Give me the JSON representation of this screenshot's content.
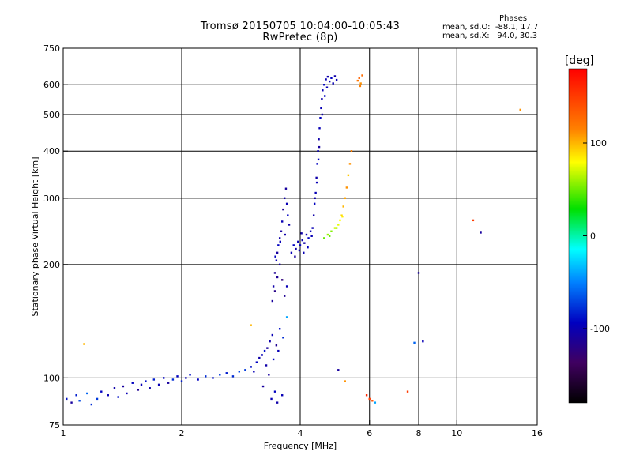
{
  "title_line1": "Tromsø 20150705 10:04:00-10:05:43",
  "title_line2": "RwPretec (8p)",
  "phases": {
    "heading": "Phases",
    "line_o": "mean, sd,O:  -88.1, 17.7",
    "line_x": "mean, sd,X:   94.0, 30.3"
  },
  "colorbar": {
    "label": "[deg]",
    "range": [
      -180,
      180
    ],
    "ticks": [
      {
        "value": 100,
        "label": "100"
      },
      {
        "value": 0,
        "label": "0"
      },
      {
        "value": -100,
        "label": "-100"
      }
    ]
  },
  "chart_data": {
    "type": "scatter",
    "xlabel": "Frequency [MHz]",
    "ylabel": "Stationary phase Virtual Height [km]",
    "xscale": "log",
    "yscale": "log",
    "xlim": [
      1,
      16
    ],
    "ylim": [
      75,
      750
    ],
    "xticks": [
      {
        "value": 1,
        "label": "1"
      },
      {
        "value": 2,
        "label": "2"
      },
      {
        "value": 4,
        "label": "4"
      },
      {
        "value": 6,
        "label": "6"
      },
      {
        "value": 8,
        "label": "8"
      },
      {
        "value": 10,
        "label": "10"
      },
      {
        "value": 16,
        "label": "16"
      }
    ],
    "yticks": [
      {
        "value": 75,
        "label": "75"
      },
      {
        "value": 100,
        "label": "100"
      },
      {
        "value": 200,
        "label": "200"
      },
      {
        "value": 300,
        "label": "300"
      },
      {
        "value": 400,
        "label": "400"
      },
      {
        "value": 500,
        "label": "500"
      },
      {
        "value": 600,
        "label": "600"
      },
      {
        "value": 750,
        "label": "750"
      }
    ],
    "grid": true,
    "color_by": "phase [deg]",
    "points": [
      [
        1.02,
        88,
        -90
      ],
      [
        1.05,
        86,
        -110
      ],
      [
        1.08,
        90,
        -85
      ],
      [
        1.1,
        87,
        -70
      ],
      [
        1.15,
        91,
        -60
      ],
      [
        1.18,
        85,
        -80
      ],
      [
        1.22,
        88,
        -75
      ],
      [
        1.25,
        92,
        -95
      ],
      [
        1.3,
        90,
        -100
      ],
      [
        1.35,
        94,
        -105
      ],
      [
        1.38,
        89,
        -90
      ],
      [
        1.42,
        95,
        -110
      ],
      [
        1.45,
        91,
        -100
      ],
      [
        1.5,
        97,
        -95
      ],
      [
        1.55,
        93,
        -115
      ],
      [
        1.58,
        96,
        -100
      ],
      [
        1.62,
        98,
        -90
      ],
      [
        1.66,
        94,
        -105
      ],
      [
        1.7,
        99,
        -85
      ],
      [
        1.75,
        96,
        -100
      ],
      [
        1.8,
        100,
        -95
      ],
      [
        1.85,
        97,
        -110
      ],
      [
        1.9,
        99,
        -80
      ],
      [
        1.95,
        101,
        -95
      ],
      [
        2.0,
        98,
        -85
      ],
      [
        2.05,
        100,
        -100
      ],
      [
        2.1,
        102,
        -90
      ],
      [
        2.2,
        99,
        -95
      ],
      [
        2.3,
        101,
        -80
      ],
      [
        2.4,
        100,
        -90
      ],
      [
        2.5,
        102,
        -75
      ],
      [
        2.6,
        103,
        -85
      ],
      [
        2.7,
        101,
        -80
      ],
      [
        2.8,
        104,
        -70
      ],
      [
        2.9,
        105,
        -75
      ],
      [
        3.0,
        107,
        -90
      ],
      [
        3.05,
        104,
        -100
      ],
      [
        3.1,
        110,
        -95
      ],
      [
        3.15,
        113,
        -105
      ],
      [
        3.2,
        115,
        -100
      ],
      [
        3.25,
        118,
        -90
      ],
      [
        3.3,
        120,
        -110
      ],
      [
        3.35,
        125,
        -105
      ],
      [
        3.4,
        130,
        -100
      ],
      [
        3.42,
        112,
        -95
      ],
      [
        3.48,
        122,
        -115
      ],
      [
        3.52,
        118,
        -100
      ],
      [
        3.55,
        135,
        -90
      ],
      [
        3.28,
        108,
        -105
      ],
      [
        3.33,
        102,
        -110
      ],
      [
        3.38,
        88,
        -100
      ],
      [
        3.45,
        92,
        -95
      ],
      [
        3.5,
        86,
        -105
      ],
      [
        3.6,
        90,
        -100
      ],
      [
        3.22,
        95,
        -110
      ],
      [
        3.62,
        128,
        -80
      ],
      [
        3.4,
        160,
        -110
      ],
      [
        3.42,
        175,
        -105
      ],
      [
        3.45,
        190,
        -115
      ],
      [
        3.48,
        205,
        -100
      ],
      [
        3.5,
        215,
        -110
      ],
      [
        3.52,
        225,
        -95
      ],
      [
        3.55,
        235,
        -105
      ],
      [
        3.58,
        245,
        -110
      ],
      [
        3.6,
        260,
        -100
      ],
      [
        3.62,
        280,
        -115
      ],
      [
        3.65,
        300,
        -105
      ],
      [
        3.68,
        318,
        -110
      ],
      [
        3.7,
        290,
        -100
      ],
      [
        3.72,
        270,
        -95
      ],
      [
        3.75,
        255,
        -105
      ],
      [
        3.45,
        170,
        -120
      ],
      [
        3.5,
        185,
        -115
      ],
      [
        3.55,
        200,
        -110
      ],
      [
        3.6,
        182,
        -125
      ],
      [
        3.65,
        165,
        -115
      ],
      [
        3.7,
        175,
        -100
      ],
      [
        3.46,
        210,
        -95
      ],
      [
        3.56,
        230,
        -100
      ],
      [
        3.66,
        240,
        -105
      ],
      [
        3.8,
        215,
        -100
      ],
      [
        3.85,
        225,
        -95
      ],
      [
        3.9,
        220,
        -105
      ],
      [
        3.95,
        230,
        -100
      ],
      [
        4.0,
        225,
        -95
      ],
      [
        4.05,
        232,
        -100
      ],
      [
        4.1,
        228,
        -105
      ],
      [
        4.15,
        240,
        -100
      ],
      [
        4.2,
        235,
        -95
      ],
      [
        4.25,
        245,
        -100
      ],
      [
        3.88,
        210,
        -110
      ],
      [
        3.98,
        218,
        -105
      ],
      [
        4.08,
        215,
        -100
      ],
      [
        4.18,
        222,
        -95
      ],
      [
        4.28,
        238,
        -100
      ],
      [
        4.03,
        242,
        -105
      ],
      [
        4.3,
        250,
        -100
      ],
      [
        4.33,
        270,
        -105
      ],
      [
        4.35,
        290,
        -95
      ],
      [
        4.38,
        310,
        -100
      ],
      [
        4.4,
        340,
        -105
      ],
      [
        4.42,
        370,
        -95
      ],
      [
        4.44,
        400,
        -100
      ],
      [
        4.46,
        430,
        -105
      ],
      [
        4.48,
        460,
        -100
      ],
      [
        4.5,
        490,
        -95
      ],
      [
        4.52,
        520,
        -100
      ],
      [
        4.54,
        550,
        -105
      ],
      [
        4.56,
        580,
        -100
      ],
      [
        4.6,
        600,
        -95
      ],
      [
        4.65,
        620,
        -100
      ],
      [
        4.7,
        630,
        -105
      ],
      [
        4.75,
        612,
        -100
      ],
      [
        4.8,
        625,
        -95
      ],
      [
        4.85,
        605,
        -100
      ],
      [
        4.9,
        632,
        -105
      ],
      [
        4.95,
        618,
        -100
      ],
      [
        4.62,
        560,
        -95
      ],
      [
        4.68,
        590,
        -100
      ],
      [
        4.47,
        410,
        -110
      ],
      [
        4.55,
        500,
        -105
      ],
      [
        4.45,
        380,
        -95
      ],
      [
        4.41,
        330,
        -100
      ],
      [
        4.36,
        300,
        -105
      ],
      [
        4.6,
        235,
        50
      ],
      [
        4.7,
        240,
        60
      ],
      [
        4.8,
        245,
        55
      ],
      [
        4.9,
        250,
        70
      ],
      [
        5.0,
        255,
        75
      ],
      [
        5.05,
        262,
        80
      ],
      [
        5.1,
        270,
        90
      ],
      [
        5.15,
        285,
        100
      ],
      [
        5.2,
        300,
        105
      ],
      [
        5.25,
        320,
        110
      ],
      [
        5.3,
        345,
        95
      ],
      [
        5.35,
        370,
        110
      ],
      [
        5.4,
        400,
        115
      ],
      [
        4.75,
        238,
        50
      ],
      [
        4.95,
        250,
        65
      ],
      [
        5.12,
        268,
        85
      ],
      [
        5.6,
        615,
        120
      ],
      [
        5.65,
        625,
        130
      ],
      [
        5.7,
        605,
        110
      ],
      [
        5.75,
        635,
        125
      ],
      [
        5.68,
        595,
        115
      ],
      [
        6.0,
        88,
        150
      ],
      [
        6.1,
        87,
        140
      ],
      [
        5.9,
        90,
        160
      ],
      [
        6.2,
        86,
        -40
      ],
      [
        7.5,
        92,
        150
      ],
      [
        7.8,
        124,
        -60
      ],
      [
        8.0,
        190,
        -110
      ],
      [
        8.2,
        125,
        -100
      ],
      [
        11.0,
        262,
        150
      ],
      [
        11.5,
        243,
        -110
      ],
      [
        14.5,
        515,
        110
      ],
      [
        1.13,
        123,
        100
      ],
      [
        3.0,
        138,
        100
      ],
      [
        3.7,
        145,
        -40
      ],
      [
        5.2,
        98,
        110
      ],
      [
        5.0,
        105,
        -110
      ]
    ]
  }
}
